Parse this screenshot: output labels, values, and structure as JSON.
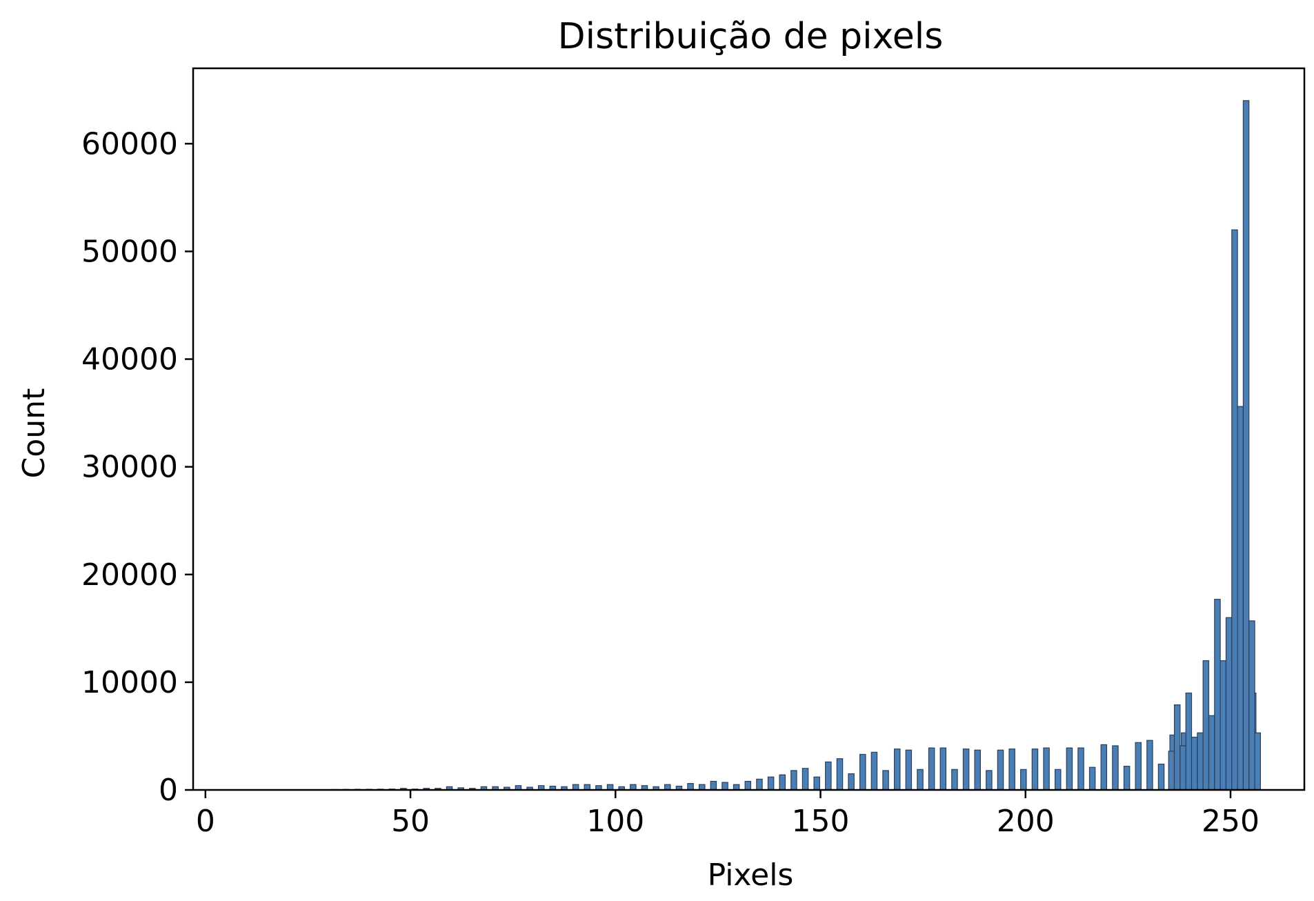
{
  "chart_data": {
    "type": "bar",
    "title": "Distribuição de pixels",
    "xlabel": "Pixels",
    "ylabel": "Count",
    "xlim": [
      -3,
      268
    ],
    "ylim": [
      0,
      67000
    ],
    "xticks": [
      0,
      50,
      100,
      150,
      200,
      250
    ],
    "xtick_labels": [
      "0",
      "50",
      "100",
      "150",
      "200",
      "250"
    ],
    "yticks": [
      0,
      10000,
      20000,
      30000,
      40000,
      50000,
      60000
    ],
    "ytick_labels": [
      "0",
      "10000",
      "20000",
      "30000",
      "40000",
      "50000",
      "60000"
    ],
    "grid": false,
    "legend": "none",
    "bar_color": "#4a7eb4",
    "bin_width": 1.4,
    "bins": [
      {
        "x": 31.5,
        "count": 40
      },
      {
        "x": 34.3,
        "count": 50
      },
      {
        "x": 37.1,
        "count": 60
      },
      {
        "x": 39.9,
        "count": 60
      },
      {
        "x": 42.7,
        "count": 70
      },
      {
        "x": 45.5,
        "count": 80
      },
      {
        "x": 48.3,
        "count": 150
      },
      {
        "x": 51.1,
        "count": 80
      },
      {
        "x": 53.9,
        "count": 150
      },
      {
        "x": 56.7,
        "count": 150
      },
      {
        "x": 59.5,
        "count": 300
      },
      {
        "x": 62.3,
        "count": 200
      },
      {
        "x": 65.1,
        "count": 150
      },
      {
        "x": 67.9,
        "count": 300
      },
      {
        "x": 70.7,
        "count": 300
      },
      {
        "x": 73.5,
        "count": 250
      },
      {
        "x": 76.3,
        "count": 400
      },
      {
        "x": 79.1,
        "count": 250
      },
      {
        "x": 81.9,
        "count": 400
      },
      {
        "x": 84.7,
        "count": 350
      },
      {
        "x": 87.5,
        "count": 300
      },
      {
        "x": 90.3,
        "count": 500
      },
      {
        "x": 93.1,
        "count": 500
      },
      {
        "x": 95.9,
        "count": 400
      },
      {
        "x": 98.7,
        "count": 500
      },
      {
        "x": 101.5,
        "count": 300
      },
      {
        "x": 104.3,
        "count": 500
      },
      {
        "x": 107.1,
        "count": 400
      },
      {
        "x": 109.9,
        "count": 300
      },
      {
        "x": 112.7,
        "count": 500
      },
      {
        "x": 115.5,
        "count": 350
      },
      {
        "x": 118.3,
        "count": 600
      },
      {
        "x": 121.1,
        "count": 500
      },
      {
        "x": 123.9,
        "count": 800
      },
      {
        "x": 126.7,
        "count": 700
      },
      {
        "x": 129.5,
        "count": 500
      },
      {
        "x": 132.3,
        "count": 800
      },
      {
        "x": 135.1,
        "count": 1000
      },
      {
        "x": 137.9,
        "count": 1200
      },
      {
        "x": 140.7,
        "count": 1400
      },
      {
        "x": 143.5,
        "count": 1800
      },
      {
        "x": 146.3,
        "count": 2000
      },
      {
        "x": 149.1,
        "count": 1200
      },
      {
        "x": 151.9,
        "count": 2600
      },
      {
        "x": 154.7,
        "count": 2900
      },
      {
        "x": 157.5,
        "count": 1500
      },
      {
        "x": 160.3,
        "count": 3300
      },
      {
        "x": 163.1,
        "count": 3500
      },
      {
        "x": 165.9,
        "count": 1800
      },
      {
        "x": 168.7,
        "count": 3800
      },
      {
        "x": 171.5,
        "count": 3700
      },
      {
        "x": 174.3,
        "count": 1900
      },
      {
        "x": 177.1,
        "count": 3900
      },
      {
        "x": 179.9,
        "count": 3900
      },
      {
        "x": 182.7,
        "count": 1900
      },
      {
        "x": 185.5,
        "count": 3800
      },
      {
        "x": 188.3,
        "count": 3700
      },
      {
        "x": 191.1,
        "count": 1800
      },
      {
        "x": 193.9,
        "count": 3700
      },
      {
        "x": 196.7,
        "count": 3800
      },
      {
        "x": 199.5,
        "count": 1900
      },
      {
        "x": 202.3,
        "count": 3800
      },
      {
        "x": 205.1,
        "count": 3900
      },
      {
        "x": 207.9,
        "count": 1900
      },
      {
        "x": 210.7,
        "count": 3900
      },
      {
        "x": 213.5,
        "count": 3900
      },
      {
        "x": 216.3,
        "count": 2100
      },
      {
        "x": 219.1,
        "count": 4200
      },
      {
        "x": 221.9,
        "count": 4100
      },
      {
        "x": 224.7,
        "count": 2200
      },
      {
        "x": 227.5,
        "count": 4400
      },
      {
        "x": 230.3,
        "count": 4600
      },
      {
        "x": 233.1,
        "count": 2400
      },
      {
        "x": 235.9,
        "count": 5100
      },
      {
        "x": 238.7,
        "count": 5300
      },
      {
        "x": 241.5,
        "count": 2600
      },
      {
        "x": 244.3,
        "count": 5700
      },
      {
        "x": 247.1,
        "count": 6300
      },
      {
        "x": 249.9,
        "count": 3400
      },
      {
        "x": 252.7,
        "count": 7900
      },
      {
        "x": 255.5,
        "count": 9000
      }
    ],
    "top_bins": [
      {
        "x": 235.6,
        "count": 3600
      },
      {
        "x": 237.0,
        "count": 7900
      },
      {
        "x": 238.4,
        "count": 4100
      },
      {
        "x": 239.8,
        "count": 9000
      },
      {
        "x": 241.2,
        "count": 4900
      },
      {
        "x": 242.6,
        "count": 5300
      },
      {
        "x": 244.0,
        "count": 12000
      },
      {
        "x": 245.4,
        "count": 6900
      },
      {
        "x": 246.8,
        "count": 17700
      },
      {
        "x": 248.2,
        "count": 12000
      },
      {
        "x": 249.6,
        "count": 16000
      },
      {
        "x": 251.0,
        "count": 52000
      },
      {
        "x": 252.4,
        "count": 35600
      },
      {
        "x": 253.8,
        "count": 64000
      },
      {
        "x": 255.2,
        "count": 15700
      },
      {
        "x": 256.6,
        "count": 5300
      }
    ]
  }
}
